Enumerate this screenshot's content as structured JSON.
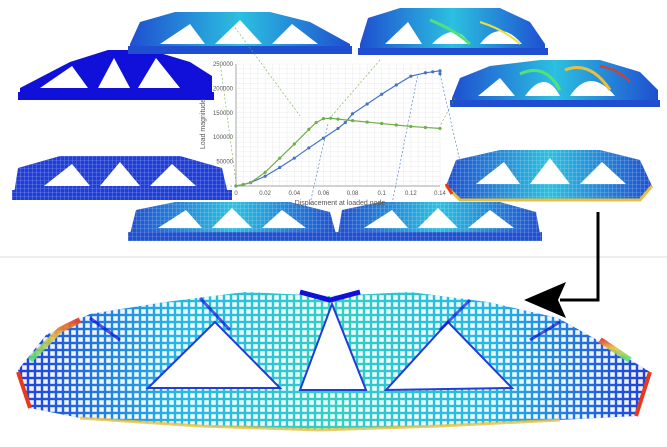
{
  "chart_data": {
    "type": "line",
    "title": "",
    "xlabel": "Displacement at loaded node",
    "ylabel": "Load magnitude",
    "xlim": [
      0,
      0.14
    ],
    "ylim": [
      0,
      250000
    ],
    "x_ticks": [
      "0",
      "0.02",
      "0.04",
      "0.06",
      "0.08",
      "0.1",
      "0.12",
      "0.14"
    ],
    "y_ticks": [
      "50000",
      "100000",
      "150000",
      "200000",
      "250000"
    ],
    "grid": true,
    "series": [
      {
        "color": "#4472c4",
        "x": [
          0,
          0.005,
          0.01,
          0.02,
          0.03,
          0.04,
          0.05,
          0.06,
          0.07,
          0.075,
          0.08,
          0.09,
          0.1,
          0.11,
          0.12,
          0.13,
          0.135,
          0.14,
          0.14
        ],
        "y": [
          0,
          3000,
          7000,
          20000,
          38000,
          57000,
          78000,
          98000,
          118000,
          130000,
          148000,
          168000,
          188000,
          207000,
          225000,
          232000,
          234000,
          236000,
          230000
        ]
      },
      {
        "color": "#70ad47",
        "x": [
          0,
          0.005,
          0.01,
          0.02,
          0.03,
          0.04,
          0.05,
          0.055,
          0.06,
          0.065,
          0.07,
          0.08,
          0.09,
          0.1,
          0.11,
          0.12,
          0.13,
          0.14
        ],
        "y": [
          0,
          3000,
          7000,
          28000,
          57000,
          86000,
          116000,
          130000,
          138000,
          139000,
          137000,
          134000,
          131000,
          128000,
          125000,
          122000,
          120000,
          118000
        ]
      }
    ]
  },
  "colors": {
    "series_blue": "#4472c4",
    "series_green": "#70ad47",
    "fem_dark": "#1010d8",
    "fem_mid": "#1f4fd0",
    "fem_cyan": "#22c8e8",
    "fem_green": "#52e07a",
    "fem_yellow": "#e8e040",
    "fem_red": "#e53a20"
  }
}
